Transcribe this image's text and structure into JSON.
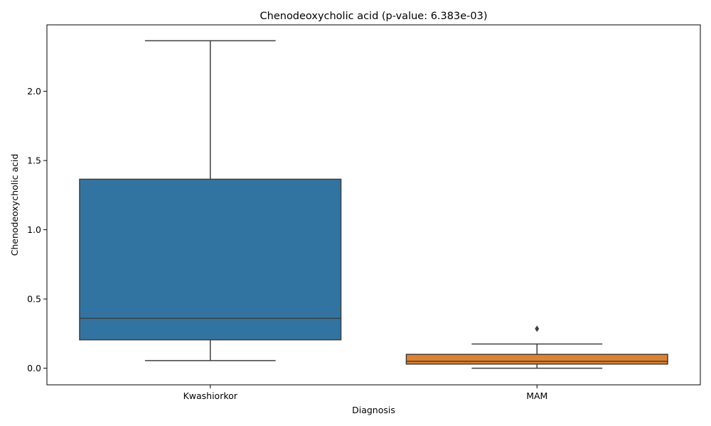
{
  "chart_data": {
    "type": "box",
    "title": "Chenodeoxycholic acid (p-value: 6.383e-03)",
    "xlabel": "Diagnosis",
    "ylabel": "Chenodeoxycholic acid",
    "ylim": [
      -0.12,
      2.48
    ],
    "yticks": [
      "0.0",
      "0.5",
      "1.0",
      "1.5",
      "2.0"
    ],
    "grid": false,
    "categories": [
      "Kwashiorkor",
      "MAM"
    ],
    "boxes": [
      {
        "category": "Kwashiorkor",
        "whisker_low": 0.055,
        "q1": 0.205,
        "median": 0.36,
        "q3": 1.365,
        "whisker_high": 2.365,
        "outliers": [],
        "color": "#3274a1"
      },
      {
        "category": "MAM",
        "whisker_low": 0.0,
        "q1": 0.03,
        "median": 0.05,
        "q3": 0.1,
        "whisker_high": 0.175,
        "outliers": [
          0.285
        ],
        "color": "#e1812c"
      }
    ],
    "line_color": "#3f3f3f"
  }
}
